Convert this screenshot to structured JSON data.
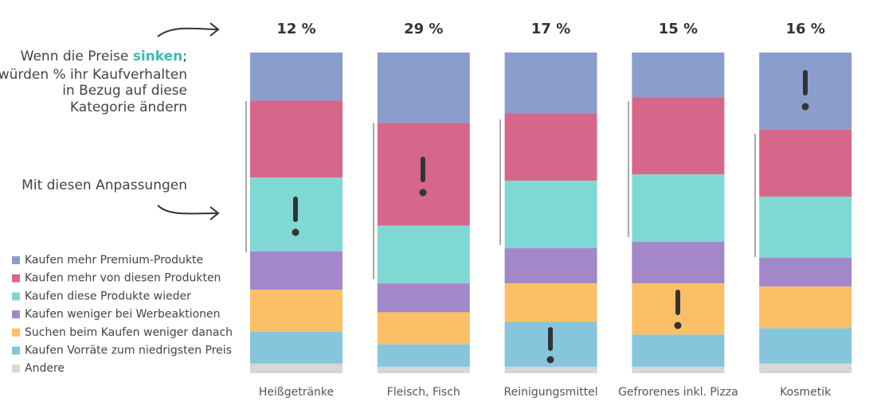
{
  "chart_data": {
    "type": "stacked_bar_100",
    "categories": [
      "Heißgetränke",
      "Fleisch, Fisch",
      "Reinigungsmittel",
      "Gefrorenes inkl. Pizza",
      "Kosmetik"
    ],
    "totals": {
      "values": [
        12,
        29,
        17,
        15,
        16
      ],
      "value_labels": [
        "12 %",
        "29 %",
        "17 %",
        "15 %",
        "16 %"
      ]
    },
    "series": [
      {
        "name": "Kaufen mehr Premium-Produkte",
        "color": "#8b9dcc",
        "values": [
          15,
          22,
          19,
          14,
          24
        ]
      },
      {
        "name": "Kaufen mehr von diesen Produkten",
        "color": "#d6678a",
        "values": [
          24,
          32,
          21,
          24,
          21
        ]
      },
      {
        "name": "Kaufen diese Produkte wieder",
        "color": "#80d8d4",
        "values": [
          23,
          18,
          21,
          21,
          19
        ]
      },
      {
        "name": "Kaufen weniger bei Werbeaktionen",
        "color": "#a487c9",
        "values": [
          12,
          9,
          11,
          13,
          9
        ]
      },
      {
        "name": "Suchen beim Kaufen weniger danach",
        "color": "#fbc067",
        "values": [
          13,
          10,
          12,
          16,
          13
        ]
      },
      {
        "name": "Kaufen Vorräte zum niedrigsten Preis",
        "color": "#86c6dc",
        "values": [
          10,
          7,
          14,
          10,
          11
        ]
      },
      {
        "name": "Andere",
        "color": "#d7d7d7",
        "values": [
          3,
          2,
          2,
          2,
          3
        ]
      }
    ],
    "ylim": [
      0,
      100
    ],
    "annotations": {
      "question": {
        "line1": [
          "Wenn die Preise ",
          "sinken",
          ";"
        ],
        "lines": [
          "würden % ihr Kaufverhalten",
          "in Bezug auf diese",
          "Kategorie ändern"
        ]
      },
      "adjustments": "Mit diesen Anpassungen"
    }
  }
}
